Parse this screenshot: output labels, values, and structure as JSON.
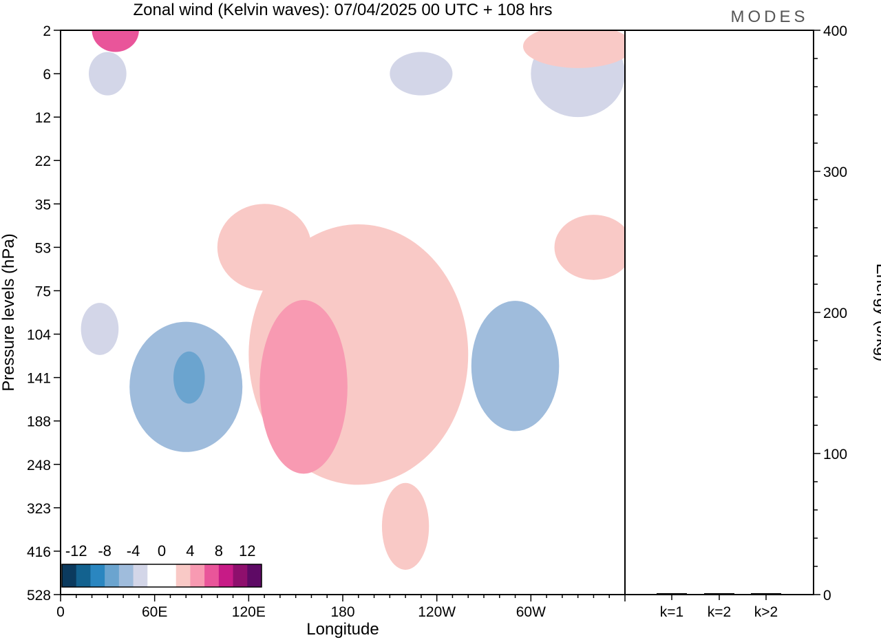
{
  "logo_text": "MODES",
  "chart_data": [
    {
      "type": "heatmap",
      "title": "Zonal wind (Kelvin waves):  07/04/2025  00 UTC  + 108 hrs",
      "xlabel": "Longitude",
      "ylabel": "Pressure levels (hPa)",
      "x_ticks": [
        {
          "lon": 0,
          "label": "0"
        },
        {
          "lon": 60,
          "label": "60E"
        },
        {
          "lon": 120,
          "label": "120E"
        },
        {
          "lon": 180,
          "label": "180"
        },
        {
          "lon": 240,
          "label": "120W"
        },
        {
          "lon": 300,
          "label": "60W"
        }
      ],
      "xlim": [
        0,
        360
      ],
      "y_levels": [
        "2",
        "6",
        "12",
        "22",
        "35",
        "53",
        "75",
        "104",
        "141",
        "188",
        "248",
        "323",
        "416",
        "528"
      ],
      "legend": {
        "labels": [
          "-12",
          "-8",
          "-4",
          "0",
          "4",
          "8",
          "12"
        ],
        "colors": [
          "#0b3a5e",
          "#13628f",
          "#2a86c0",
          "#6ba4cf",
          "#9fbcdc",
          "#d3d6e8",
          "#ffffff",
          "#ffffff",
          "#f9c9c6",
          "#f89ab2",
          "#e9559a",
          "#c71b86",
          "#8e0f6d",
          "#5e0a65"
        ],
        "placement": "bottom-left"
      },
      "features": [
        {
          "name": "neg-west-hi-1",
          "sign": "neg",
          "level": 1,
          "lon": 30,
          "p": 6,
          "rx": 12,
          "ry": 1
        },
        {
          "name": "neg-west-mid",
          "sign": "neg",
          "level": 1,
          "lon": 25,
          "p": 100,
          "rx": 12,
          "ry": 1.2
        },
        {
          "name": "neg-west-core",
          "sign": "neg",
          "level": 2,
          "lon": 80,
          "p": 150,
          "rx": 36,
          "ry": 3
        },
        {
          "name": "neg-west-peak",
          "sign": "neg",
          "level": 3,
          "lon": 82,
          "p": 141,
          "rx": 10,
          "ry": 1.2
        },
        {
          "name": "neg-central-upper",
          "sign": "neg",
          "level": 1,
          "lon": 230,
          "p": 6,
          "rx": 20,
          "ry": 1
        },
        {
          "name": "neg-east-core",
          "sign": "neg",
          "level": 2,
          "lon": 290,
          "p": 130,
          "rx": 28,
          "ry": 3
        },
        {
          "name": "neg-east-upper",
          "sign": "neg",
          "level": 1,
          "lon": 330,
          "p": 6,
          "rx": 30,
          "ry": 2
        },
        {
          "name": "pos-west-hi",
          "sign": "pos",
          "level": 3,
          "lon": 35,
          "p": 2,
          "rx": 15,
          "ry": 1
        },
        {
          "name": "pos-west-mid",
          "sign": "pos",
          "level": 1,
          "lon": 130,
          "p": 53,
          "rx": 30,
          "ry": 2
        },
        {
          "name": "pos-central-core",
          "sign": "pos",
          "level": 2,
          "lon": 155,
          "p": 150,
          "rx": 28,
          "ry": 4
        },
        {
          "name": "pos-central-broad",
          "sign": "pos",
          "level": 1,
          "lon": 190,
          "p": 120,
          "rx": 70,
          "ry": 6
        },
        {
          "name": "pos-central-low",
          "sign": "pos",
          "level": 1,
          "lon": 220,
          "p": 360,
          "rx": 15,
          "ry": 2
        },
        {
          "name": "pos-east-mid",
          "sign": "pos",
          "level": 1,
          "lon": 340,
          "p": 53,
          "rx": 25,
          "ry": 1.5
        },
        {
          "name": "pos-east-upper",
          "sign": "pos",
          "level": 1,
          "lon": 330,
          "p": 3,
          "rx": 35,
          "ry": 1
        }
      ]
    },
    {
      "type": "bar",
      "ylabel": "Energy (J/kg)",
      "categories": [
        "k=1",
        "k=2",
        "k>2"
      ],
      "values": [
        0.5,
        0.5,
        0.5
      ],
      "ylim": [
        0,
        400
      ],
      "y_ticks": [
        0,
        100,
        200,
        300,
        400
      ]
    }
  ]
}
